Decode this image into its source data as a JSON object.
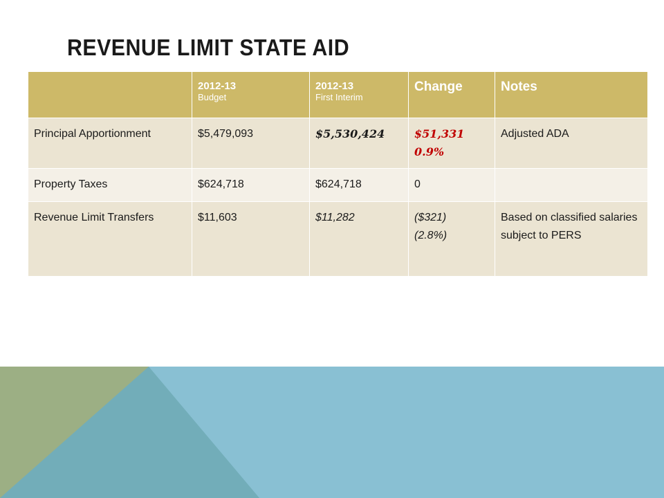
{
  "title": "REVENUE LIMIT STATE AID",
  "table": {
    "headers": {
      "col1": "",
      "col2_line1": "2012-13",
      "col2_line2": "Budget",
      "col3_line1": "2012-13",
      "col3_line2": "First Interim",
      "col4": "Change",
      "col5": "Notes"
    },
    "rows": [
      {
        "label": "Principal Apportionment",
        "budget": "$5,479,093",
        "interim": "$5,530,424",
        "change_line1": "$51,331",
        "change_line2": "0.9%",
        "notes": "Adjusted ADA"
      },
      {
        "label": "Property Taxes",
        "budget": "$624,718",
        "interim": "$624,718",
        "change_line1": "0",
        "change_line2": "",
        "notes": ""
      },
      {
        "label": "Revenue Limit Transfers",
        "budget": "$11,603",
        "interim": "$11,282",
        "change_line1": "($321)",
        "change_line2": "(2.8%)",
        "notes": "Based on classified salaries subject to PERS"
      }
    ]
  },
  "colors": {
    "header_bg": "#cdb968",
    "row_odd": "#ebe4d2",
    "row_even": "#f4f0e7",
    "accent_red": "#c00000",
    "footer_blue": "#89c0d3",
    "footer_teal": "#72adb9",
    "footer_green": "#9caf84"
  }
}
